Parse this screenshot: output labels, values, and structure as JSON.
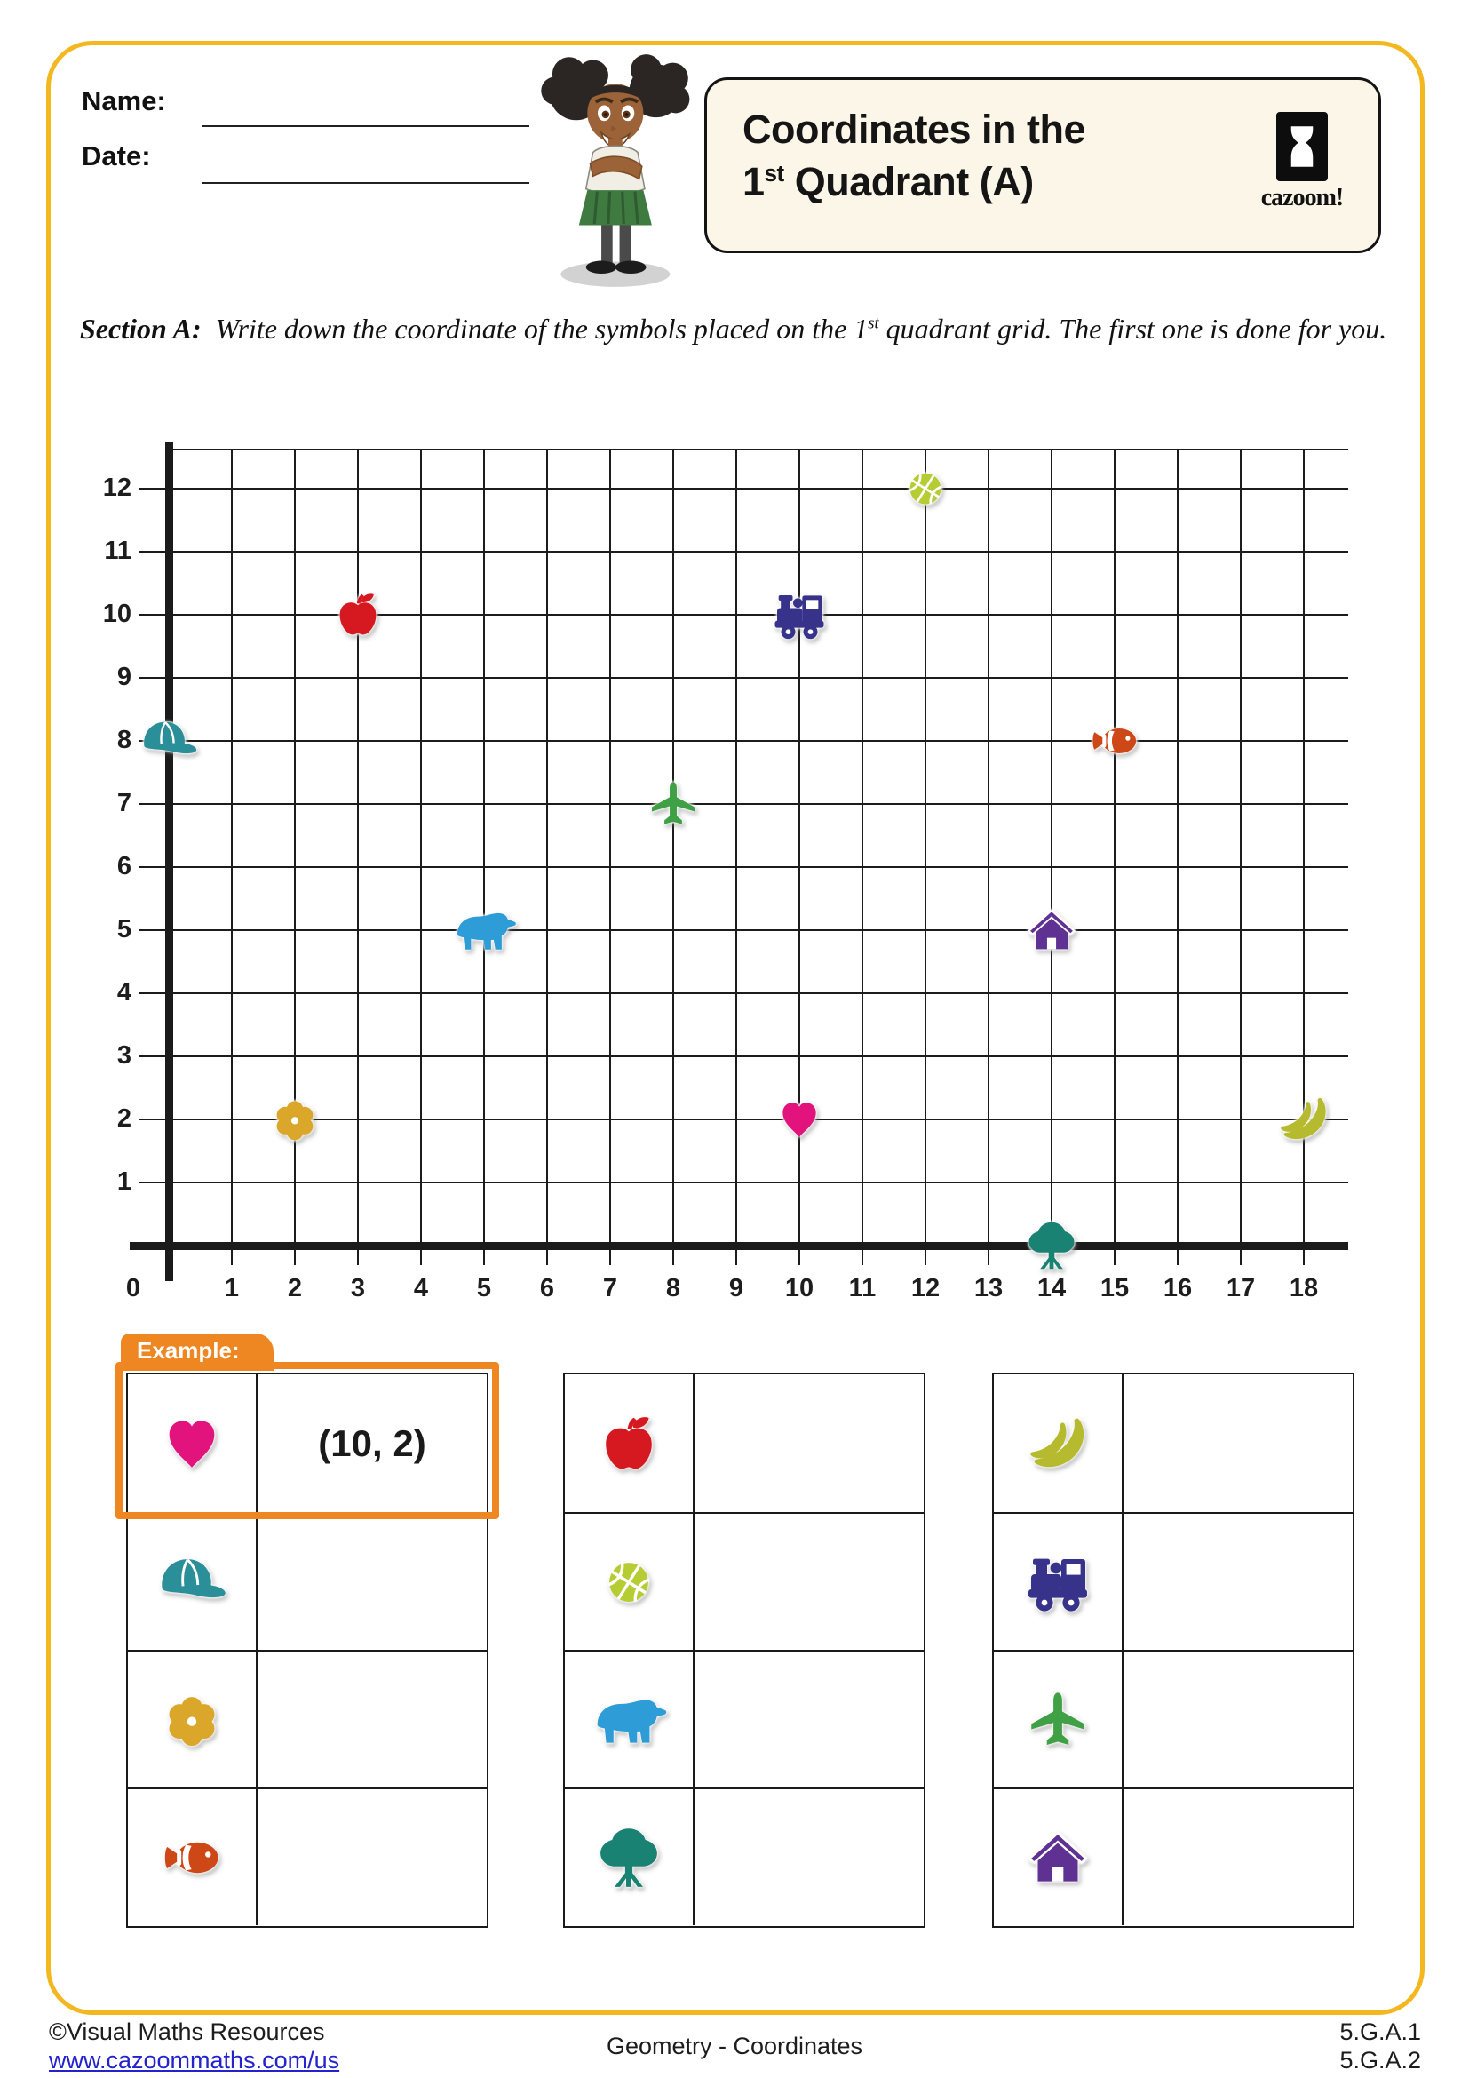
{
  "header": {
    "name_label": "Name:",
    "date_label": "Date:",
    "title_line1": "Coordinates in the",
    "title_line2": {
      "pre": "1",
      "sup": "st",
      "post": " Quadrant (A)"
    },
    "logo": {
      "text": "cazoom!"
    }
  },
  "section_a": {
    "label": "Section A:",
    "instruction_pre": "Write down the coordinate of the symbols placed on the 1",
    "instruction_sup": "st",
    "instruction_post": " quadrant grid. The first one is done for you."
  },
  "grid": {
    "x_min": 0,
    "x_max": 18,
    "y_min": 0,
    "y_max": 12,
    "origin_label": "0",
    "x_tick_labels": [
      "1",
      "2",
      "3",
      "4",
      "5",
      "6",
      "7",
      "8",
      "9",
      "10",
      "11",
      "12",
      "13",
      "14",
      "15",
      "16",
      "17",
      "18"
    ],
    "y_tick_labels": [
      "1",
      "2",
      "3",
      "4",
      "5",
      "6",
      "7",
      "8",
      "9",
      "10",
      "11",
      "12"
    ],
    "points": [
      {
        "icon": "cap",
        "x": 0,
        "y": 8
      },
      {
        "icon": "flower",
        "x": 2,
        "y": 2
      },
      {
        "icon": "apple",
        "x": 3,
        "y": 10
      },
      {
        "icon": "bear",
        "x": 5,
        "y": 5
      },
      {
        "icon": "airplane",
        "x": 8,
        "y": 7
      },
      {
        "icon": "train",
        "x": 10,
        "y": 10
      },
      {
        "icon": "heart",
        "x": 10,
        "y": 2
      },
      {
        "icon": "basketball",
        "x": 12,
        "y": 12
      },
      {
        "icon": "house",
        "x": 14,
        "y": 5
      },
      {
        "icon": "tree",
        "x": 14,
        "y": 0
      },
      {
        "icon": "fish",
        "x": 15,
        "y": 8
      },
      {
        "icon": "banana",
        "x": 18,
        "y": 2
      }
    ]
  },
  "example": {
    "tab_label": "Example:",
    "answer": "(10, 2)"
  },
  "tables": [
    {
      "rows": [
        {
          "icon": "heart",
          "answer": "(10, 2)",
          "is_example": true
        },
        {
          "icon": "cap",
          "answer": ""
        },
        {
          "icon": "flower",
          "answer": ""
        },
        {
          "icon": "fish",
          "answer": ""
        }
      ]
    },
    {
      "rows": [
        {
          "icon": "apple",
          "answer": ""
        },
        {
          "icon": "basketball",
          "answer": ""
        },
        {
          "icon": "bear",
          "answer": ""
        },
        {
          "icon": "tree",
          "answer": ""
        }
      ]
    },
    {
      "rows": [
        {
          "icon": "banana",
          "answer": ""
        },
        {
          "icon": "train",
          "answer": ""
        },
        {
          "icon": "airplane",
          "answer": ""
        },
        {
          "icon": "house",
          "answer": ""
        }
      ]
    }
  ],
  "footer": {
    "copyright": "©Visual Maths Resources",
    "link": "www.cazoommaths.com/us",
    "center": "Geometry - Coordinates",
    "standards": [
      "5.G.A.1",
      "5.G.A.2"
    ]
  },
  "colors": {
    "page_frame_yellow": "#F3B71F",
    "accent_orange": "#EE8622",
    "title_box_bg": "#FBF6E7",
    "link_blue": "#2222CE",
    "heart": "#E3137E",
    "cap": "#2A8F99",
    "flower": "#DBA72A",
    "fish": "#CD4717",
    "apple": "#D61920",
    "basketball": "#B5CC33",
    "bear": "#2E9CD6",
    "tree": "#1A8273",
    "banana": "#B6BA2E",
    "train": "#37338A",
    "airplane": "#3FA045",
    "house": "#5E3192"
  },
  "chart_data": {
    "type": "scatter",
    "title": "Coordinates in the 1st Quadrant (A)",
    "xlabel": "",
    "ylabel": "",
    "xlim": [
      0,
      18
    ],
    "ylim": [
      0,
      12
    ],
    "grid": true,
    "points": [
      {
        "label": "cap",
        "x": 0,
        "y": 8
      },
      {
        "label": "flower",
        "x": 2,
        "y": 2
      },
      {
        "label": "apple",
        "x": 3,
        "y": 10
      },
      {
        "label": "bear",
        "x": 5,
        "y": 5
      },
      {
        "label": "airplane",
        "x": 8,
        "y": 7
      },
      {
        "label": "train",
        "x": 10,
        "y": 10
      },
      {
        "label": "heart",
        "x": 10,
        "y": 2
      },
      {
        "label": "basketball",
        "x": 12,
        "y": 12
      },
      {
        "label": "house",
        "x": 14,
        "y": 5
      },
      {
        "label": "tree",
        "x": 14,
        "y": 0
      },
      {
        "label": "fish",
        "x": 15,
        "y": 8
      },
      {
        "label": "banana",
        "x": 18,
        "y": 2
      }
    ]
  }
}
